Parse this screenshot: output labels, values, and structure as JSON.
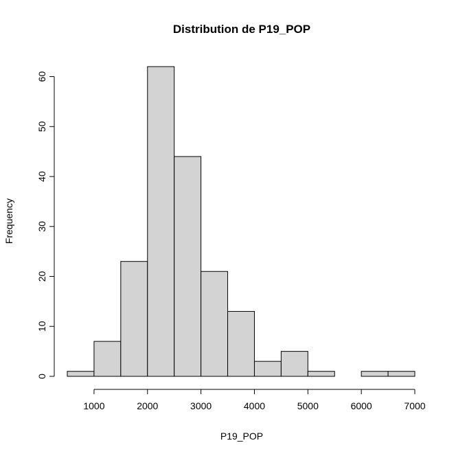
{
  "chart_data": {
    "type": "bar",
    "title": "Distribution de P19_POP",
    "xlabel": "P19_POP",
    "ylabel": "Frequency",
    "bin_edges": [
      500,
      1000,
      1500,
      2000,
      2500,
      3000,
      3500,
      4000,
      4500,
      5000,
      5500,
      6000,
      6500,
      7000
    ],
    "values": [
      1,
      7,
      23,
      62,
      44,
      21,
      13,
      3,
      5,
      1,
      0,
      1,
      1
    ],
    "xlim": [
      500,
      7000
    ],
    "ylim": [
      0,
      62
    ],
    "x_ticks": [
      1000,
      2000,
      3000,
      4000,
      5000,
      6000,
      7000
    ],
    "y_ticks": [
      0,
      10,
      20,
      30,
      40,
      50,
      60
    ],
    "bar_color": "#d3d3d3",
    "grid": false,
    "legend": "none"
  }
}
